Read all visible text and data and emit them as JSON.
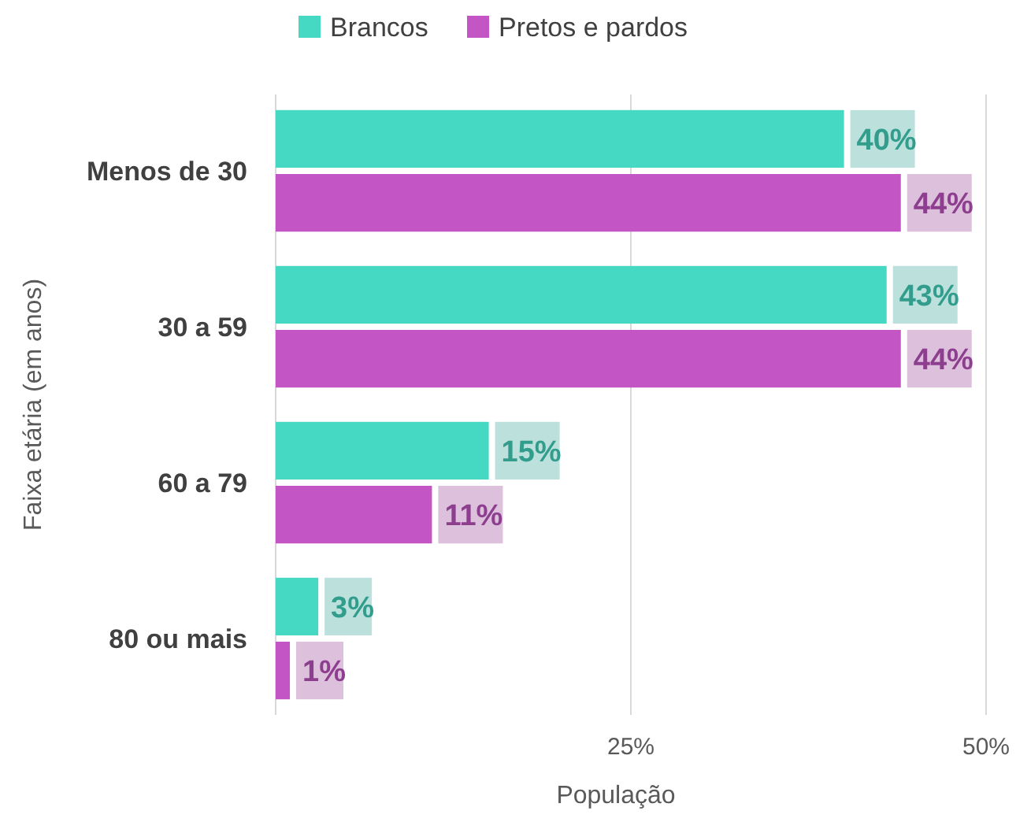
{
  "chart_data": {
    "type": "bar",
    "orientation": "horizontal",
    "xlabel": "População",
    "ylabel": "Faixa etária (em anos)",
    "categories": [
      "Menos de 30",
      "30 a 59",
      "60 a 79",
      "80 ou mais"
    ],
    "series": [
      {
        "name": "Brancos",
        "color": "#45d9c3",
        "values": [
          40,
          43,
          15,
          3
        ],
        "value_labels": [
          "40%",
          "43%",
          "15%",
          "3%"
        ]
      },
      {
        "name": "Pretos e pardos",
        "color": "#c455c4",
        "values": [
          44,
          44,
          11,
          1
        ],
        "value_labels": [
          "44%",
          "44%",
          "11%",
          "1%"
        ]
      }
    ],
    "xlim": [
      0,
      50
    ],
    "xticks": [
      {
        "value": 0,
        "label": null
      },
      {
        "value": 25,
        "label": "25%"
      },
      {
        "value": 50,
        "label": "50%"
      }
    ],
    "grid": "x",
    "legend": "top"
  }
}
